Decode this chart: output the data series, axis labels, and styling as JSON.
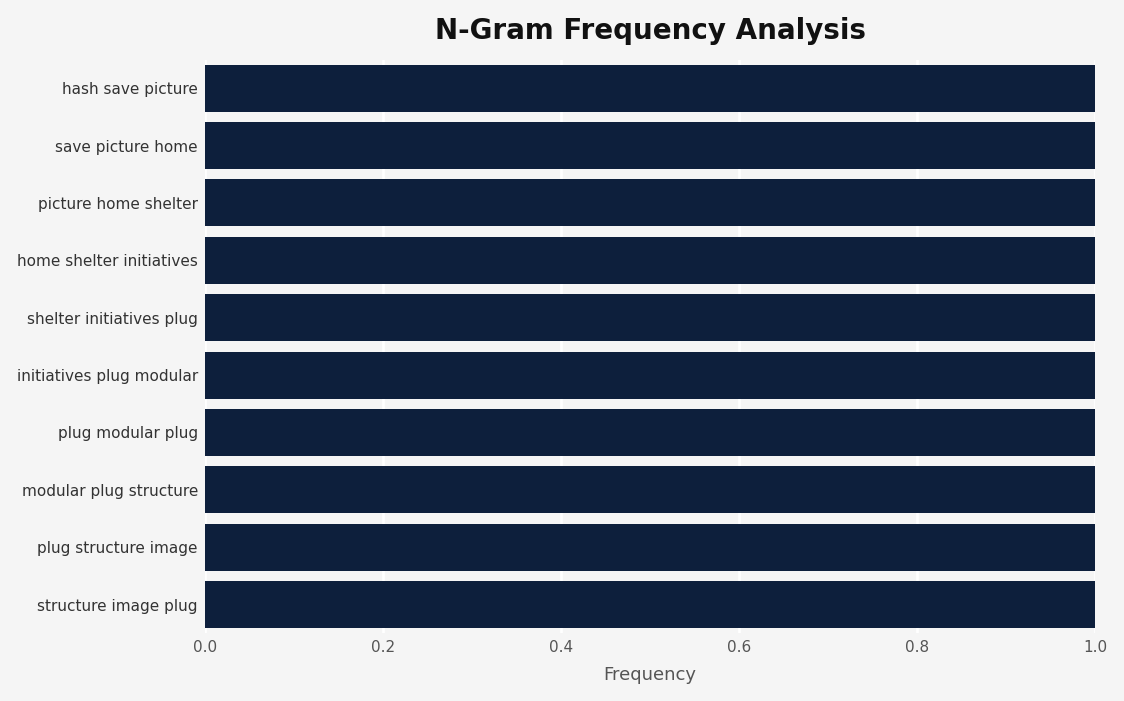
{
  "title": "N-Gram Frequency Analysis",
  "title_fontsize": 20,
  "title_fontweight": "bold",
  "categories": [
    "structure image plug",
    "plug structure image",
    "modular plug structure",
    "plug modular plug",
    "initiatives plug modular",
    "shelter initiatives plug",
    "home shelter initiatives",
    "picture home shelter",
    "save picture home",
    "hash save picture"
  ],
  "values": [
    1.0,
    1.0,
    1.0,
    1.0,
    1.0,
    1.0,
    1.0,
    1.0,
    1.0,
    1.0
  ],
  "bar_color": "#0d1f3c",
  "xlabel": "Frequency",
  "xlabel_fontsize": 13,
  "xlim": [
    0.0,
    1.0
  ],
  "xticks": [
    0.0,
    0.2,
    0.4,
    0.6,
    0.8,
    1.0
  ],
  "xtick_labels": [
    "0.0",
    "0.2",
    "0.4",
    "0.6",
    "0.8",
    "1.0"
  ],
  "background_color": "#f5f5f5",
  "bar_height": 0.82,
  "label_fontsize": 11,
  "tick_fontsize": 11,
  "grid_color": "white",
  "grid_linewidth": 2.0,
  "ytick_color": "#333333",
  "xtick_color": "#555555"
}
